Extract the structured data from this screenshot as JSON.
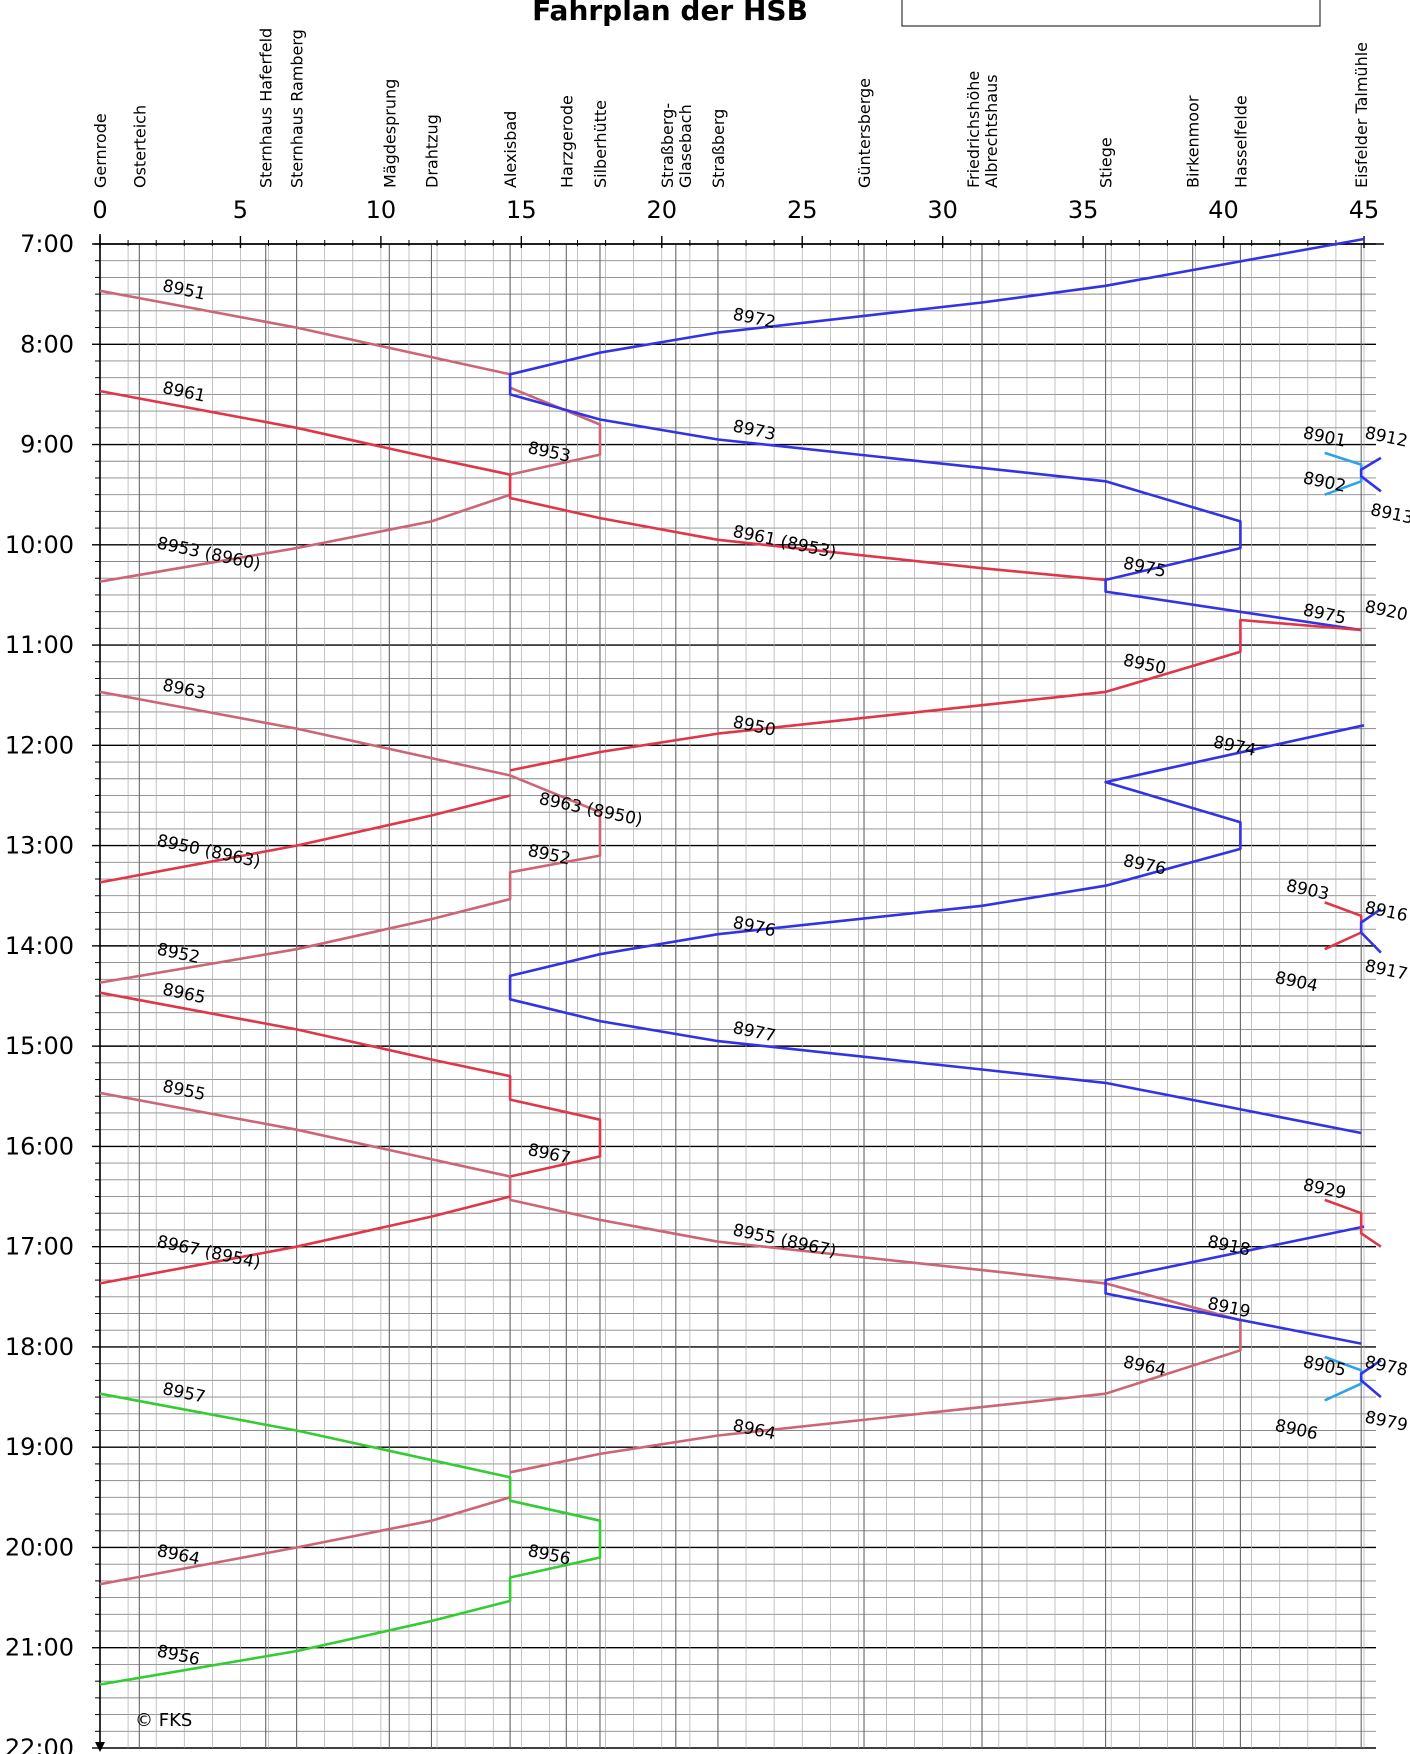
{
  "title": "Fahrplan der HSB",
  "copyright": "© FKS",
  "colors": {
    "blue": "#3333e6",
    "red": "#e0364a",
    "mauve": "#cc6677",
    "green": "#33cc33",
    "lightblue": "#2aa3e8"
  },
  "chart_data": {
    "type": "line",
    "xlabel": "",
    "ylabel": "",
    "xlim": [
      0,
      45
    ],
    "ylim": [
      "7:00",
      "22:00"
    ],
    "x_ticks": [
      0,
      5,
      10,
      15,
      20,
      25,
      30,
      35,
      40,
      45
    ],
    "x_tick_labels": [
      "0",
      "5",
      "10",
      "15",
      "20",
      "25",
      "30",
      "35",
      "40",
      "45"
    ],
    "y_ticks": [
      "7:00",
      "8:00",
      "9:00",
      "10:00",
      "11:00",
      "12:00",
      "13:00",
      "14:00",
      "15:00",
      "16:00",
      "17:00",
      "18:00",
      "19:00",
      "20:00",
      "21:00",
      "22:00"
    ],
    "grid": true,
    "stations": [
      {
        "name": "Gernrode",
        "km": 0.0
      },
      {
        "name": "Osterteich",
        "km": 1.4
      },
      {
        "name": "Sternhaus Haferfeld",
        "km": 5.9
      },
      {
        "name": "Sternhaus Ramberg",
        "km": 7.0
      },
      {
        "name": "Mägdesprung",
        "km": 10.3
      },
      {
        "name": "Drahtzug",
        "km": 11.8
      },
      {
        "name": "Alexisbad",
        "km": 14.6
      },
      {
        "name": "Harzgerode",
        "km": 16.6
      },
      {
        "name": "Silberhütte",
        "km": 17.8
      },
      {
        "name": "Straßberg-Glasebach",
        "km": 20.5
      },
      {
        "name": "Straßberg",
        "km": 22.0
      },
      {
        "name": "Güntersberge",
        "km": 27.2
      },
      {
        "name": "Friedrichshöhe Albrechtshaus",
        "km": 31.4
      },
      {
        "name": "Stiege",
        "km": 35.8
      },
      {
        "name": "Birkenmoor",
        "km": 38.9
      },
      {
        "name": "Hasselfelde",
        "km": 40.6
      },
      {
        "name": "Eisfelder Talmühle",
        "km": 44.9
      }
    ],
    "series": [
      {
        "name": "8951",
        "color": "mauve",
        "points": [
          [
            0.0,
            "7:28"
          ],
          [
            7.0,
            "7:50"
          ],
          [
            14.6,
            "8:18"
          ]
        ]
      },
      {
        "name": "8953",
        "color": "mauve",
        "points": [
          [
            14.6,
            "8:26"
          ],
          [
            17.8,
            "8:48"
          ],
          [
            17.8,
            "9:06"
          ],
          [
            14.6,
            "9:18"
          ]
        ]
      },
      {
        "name": "8953 (8960)",
        "color": "mauve",
        "points": [
          [
            14.6,
            "9:30"
          ],
          [
            11.8,
            "9:46"
          ],
          [
            7.0,
            "10:02"
          ],
          [
            0.0,
            "10:22"
          ]
        ]
      },
      {
        "name": "8961",
        "color": "red",
        "points": [
          [
            0.0,
            "8:28"
          ],
          [
            7.0,
            "8:50"
          ],
          [
            11.8,
            "9:08"
          ],
          [
            14.6,
            "9:18"
          ],
          [
            14.6,
            "9:32"
          ],
          [
            17.8,
            "9:44"
          ],
          [
            22.0,
            "9:57"
          ],
          [
            31.4,
            "10:14"
          ],
          [
            35.8,
            "10:21"
          ]
        ]
      },
      {
        "name": "8972",
        "color": "blue",
        "points": [
          [
            45.0,
            "6:57"
          ],
          [
            35.8,
            "7:25"
          ],
          [
            31.4,
            "7:35"
          ],
          [
            22.0,
            "7:53"
          ],
          [
            17.8,
            "8:05"
          ],
          [
            14.6,
            "8:18"
          ],
          [
            14.6,
            "8:30"
          ],
          [
            17.8,
            "8:45"
          ],
          [
            22.0,
            "8:57"
          ],
          [
            31.4,
            "9:14"
          ],
          [
            35.8,
            "9:22"
          ],
          [
            40.6,
            "9:46"
          ],
          [
            40.6,
            "10:02"
          ],
          [
            35.8,
            "10:21"
          ],
          [
            35.8,
            "10:28"
          ],
          [
            44.9,
            "10:51"
          ]
        ]
      },
      {
        "name": "8920",
        "color": "red",
        "points": [
          [
            44.9,
            "10:51"
          ],
          [
            40.6,
            "10:45"
          ],
          [
            40.6,
            "11:04"
          ],
          [
            35.8,
            "11:28"
          ],
          [
            31.4,
            "11:36"
          ],
          [
            22.0,
            "11:53"
          ],
          [
            17.8,
            "12:04"
          ],
          [
            14.6,
            "12:15"
          ]
        ]
      },
      {
        "name": "8963",
        "color": "mauve",
        "points": [
          [
            0.0,
            "11:28"
          ],
          [
            7.0,
            "11:50"
          ],
          [
            14.6,
            "12:18"
          ],
          [
            17.8,
            "12:40"
          ],
          [
            17.8,
            "13:06"
          ],
          [
            14.6,
            "13:16"
          ],
          [
            14.6,
            "13:32"
          ],
          [
            11.8,
            "13:44"
          ],
          [
            7.0,
            "14:02"
          ],
          [
            0.0,
            "14:22"
          ]
        ]
      },
      {
        "name": "8950 (8963)",
        "color": "red",
        "points": [
          [
            14.6,
            "12:30"
          ],
          [
            11.8,
            "12:42"
          ],
          [
            7.0,
            "13:00"
          ],
          [
            0.0,
            "13:22"
          ]
        ]
      },
      {
        "name": "8974",
        "color": "blue",
        "points": [
          [
            45.0,
            "11:48"
          ],
          [
            35.8,
            "12:22"
          ],
          [
            40.6,
            "12:46"
          ],
          [
            40.6,
            "13:02"
          ],
          [
            35.8,
            "13:24"
          ],
          [
            31.4,
            "13:36"
          ],
          [
            22.0,
            "13:53"
          ],
          [
            17.8,
            "14:05"
          ],
          [
            14.6,
            "14:18"
          ],
          [
            14.6,
            "14:32"
          ],
          [
            17.8,
            "14:45"
          ],
          [
            22.0,
            "14:57"
          ],
          [
            31.4,
            "15:14"
          ],
          [
            35.8,
            "15:22"
          ],
          [
            44.9,
            "15:52"
          ]
        ]
      },
      {
        "name": "8965",
        "color": "red",
        "points": [
          [
            0.0,
            "14:28"
          ],
          [
            7.0,
            "14:50"
          ],
          [
            11.8,
            "15:08"
          ],
          [
            14.6,
            "15:18"
          ],
          [
            14.6,
            "15:32"
          ],
          [
            17.8,
            "15:44"
          ],
          [
            17.8,
            "16:06"
          ],
          [
            14.6,
            "16:18"
          ]
        ]
      },
      {
        "name": "8955",
        "color": "mauve",
        "points": [
          [
            0.0,
            "15:28"
          ],
          [
            7.0,
            "15:50"
          ],
          [
            14.6,
            "16:18"
          ],
          [
            14.6,
            "16:32"
          ],
          [
            17.8,
            "16:44"
          ],
          [
            22.0,
            "16:57"
          ],
          [
            31.4,
            "17:14"
          ],
          [
            35.8,
            "17:22"
          ],
          [
            40.6,
            "17:44"
          ],
          [
            40.6,
            "18:02"
          ],
          [
            35.8,
            "18:28"
          ],
          [
            31.4,
            "18:36"
          ],
          [
            22.0,
            "18:53"
          ],
          [
            17.8,
            "19:04"
          ],
          [
            14.6,
            "19:15"
          ]
        ]
      },
      {
        "name": "8967 (8954)",
        "color": "red",
        "points": [
          [
            14.6,
            "16:30"
          ],
          [
            11.8,
            "16:42"
          ],
          [
            7.0,
            "17:00"
          ],
          [
            0.0,
            "17:22"
          ]
        ]
      },
      {
        "name": "8918",
        "color": "blue",
        "points": [
          [
            45.0,
            "16:48"
          ],
          [
            35.8,
            "17:20"
          ],
          [
            35.8,
            "17:28"
          ],
          [
            44.9,
            "17:58"
          ]
        ]
      },
      {
        "name": "8957",
        "color": "green",
        "points": [
          [
            0.0,
            "18:28"
          ],
          [
            7.0,
            "18:50"
          ],
          [
            14.6,
            "19:18"
          ],
          [
            14.6,
            "19:32"
          ],
          [
            17.8,
            "19:44"
          ],
          [
            17.8,
            "20:06"
          ],
          [
            14.6,
            "20:18"
          ],
          [
            14.6,
            "20:32"
          ],
          [
            11.8,
            "20:44"
          ],
          [
            7.0,
            "21:02"
          ],
          [
            0.0,
            "21:22"
          ]
        ]
      },
      {
        "name": "8964",
        "color": "mauve",
        "points": [
          [
            14.6,
            "19:30"
          ],
          [
            11.8,
            "19:44"
          ],
          [
            7.0,
            "20:00"
          ],
          [
            0.0,
            "20:22"
          ]
        ]
      },
      {
        "name": "8901",
        "color": "lightblue",
        "points": [
          [
            43.6,
            "9:05"
          ],
          [
            44.9,
            "9:12"
          ],
          [
            44.9,
            "9:22"
          ],
          [
            43.6,
            "9:30"
          ]
        ]
      },
      {
        "name": "8912",
        "color": "blue",
        "points": [
          [
            45.6,
            "9:08"
          ],
          [
            44.9,
            "9:15"
          ],
          [
            44.9,
            "9:19"
          ],
          [
            45.6,
            "9:28"
          ]
        ]
      },
      {
        "name": "8903",
        "color": "red",
        "points": [
          [
            43.6,
            "13:34"
          ],
          [
            44.9,
            "13:42"
          ],
          [
            44.9,
            "13:52"
          ],
          [
            43.6,
            "14:02"
          ]
        ]
      },
      {
        "name": "8916",
        "color": "blue",
        "points": [
          [
            45.6,
            "13:38"
          ],
          [
            44.9,
            "13:46"
          ],
          [
            44.9,
            "13:52"
          ],
          [
            45.6,
            "14:04"
          ]
        ]
      },
      {
        "name": "8929",
        "color": "red",
        "points": [
          [
            43.6,
            "16:32"
          ],
          [
            44.9,
            "16:40"
          ],
          [
            44.9,
            "16:52"
          ],
          [
            45.6,
            "17:00"
          ]
        ]
      },
      {
        "name": "8905",
        "color": "lightblue",
        "points": [
          [
            43.6,
            "18:06"
          ],
          [
            44.9,
            "18:14"
          ],
          [
            44.9,
            "18:22"
          ],
          [
            43.6,
            "18:32"
          ]
        ]
      },
      {
        "name": "8978",
        "color": "blue",
        "points": [
          [
            45.6,
            "18:08"
          ],
          [
            44.9,
            "18:16"
          ],
          [
            44.9,
            "18:20"
          ],
          [
            45.6,
            "18:30"
          ]
        ]
      }
    ],
    "labels": [
      {
        "text": "8951",
        "km": 2.2,
        "time": "7:28"
      },
      {
        "text": "8972",
        "km": 22.5,
        "time": "7:45"
      },
      {
        "text": "8961",
        "km": 2.2,
        "time": "8:29"
      },
      {
        "text": "8953",
        "km": 15.2,
        "time": "9:05"
      },
      {
        "text": "8973",
        "km": 22.5,
        "time": "8:52"
      },
      {
        "text": "8961 (8953)",
        "km": 22.5,
        "time": "9:55"
      },
      {
        "text": "8953 (8960)",
        "km": 2.0,
        "time": "10:02"
      },
      {
        "text": "8975",
        "km": 36.4,
        "time": "10:14"
      },
      {
        "text": "8901",
        "km": 42.8,
        "time": "8:56"
      },
      {
        "text": "8912",
        "km": 45.0,
        "time": "8:56"
      },
      {
        "text": "8902",
        "km": 42.8,
        "time": "9:23"
      },
      {
        "text": "8913",
        "km": 45.2,
        "time": "9:42"
      },
      {
        "text": "8975",
        "km": 42.8,
        "time": "10:42"
      },
      {
        "text": "8920",
        "km": 45.0,
        "time": "10:40"
      },
      {
        "text": "8950",
        "km": 36.4,
        "time": "11:12"
      },
      {
        "text": "8963",
        "km": 2.2,
        "time": "11:27"
      },
      {
        "text": "8950",
        "km": 22.5,
        "time": "11:49"
      },
      {
        "text": "8974",
        "km": 39.6,
        "time": "12:01"
      },
      {
        "text": "8963 (8950)",
        "km": 15.6,
        "time": "12:35"
      },
      {
        "text": "8950 (8963)",
        "km": 2.0,
        "time": "13:00"
      },
      {
        "text": "8952",
        "km": 15.2,
        "time": "13:06"
      },
      {
        "text": "8976",
        "km": 36.4,
        "time": "13:12"
      },
      {
        "text": "8976",
        "km": 22.5,
        "time": "13:49"
      },
      {
        "text": "8903",
        "km": 42.2,
        "time": "13:27"
      },
      {
        "text": "8916",
        "km": 45.0,
        "time": "13:40"
      },
      {
        "text": "8952",
        "km": 2.0,
        "time": "14:05"
      },
      {
        "text": "8904",
        "km": 41.8,
        "time": "14:22"
      },
      {
        "text": "8917",
        "km": 45.0,
        "time": "14:15"
      },
      {
        "text": "8965",
        "km": 2.2,
        "time": "14:29"
      },
      {
        "text": "8977",
        "km": 22.5,
        "time": "14:52"
      },
      {
        "text": "8955",
        "km": 2.2,
        "time": "15:27"
      },
      {
        "text": "8967",
        "km": 15.2,
        "time": "16:05"
      },
      {
        "text": "8929",
        "km": 42.8,
        "time": "16:26"
      },
      {
        "text": "8967 (8954)",
        "km": 2.0,
        "time": "17:00"
      },
      {
        "text": "8955 (8967)",
        "km": 22.5,
        "time": "16:53"
      },
      {
        "text": "8918",
        "km": 39.4,
        "time": "17:00"
      },
      {
        "text": "8919",
        "km": 39.4,
        "time": "17:37"
      },
      {
        "text": "8964",
        "km": 36.4,
        "time": "18:12"
      },
      {
        "text": "8905",
        "km": 42.8,
        "time": "18:12"
      },
      {
        "text": "8978",
        "km": 45.0,
        "time": "18:12"
      },
      {
        "text": "8957",
        "km": 2.2,
        "time": "18:28"
      },
      {
        "text": "8964",
        "km": 22.5,
        "time": "18:50"
      },
      {
        "text": "8906",
        "km": 41.8,
        "time": "18:50"
      },
      {
        "text": "8979",
        "km": 45.0,
        "time": "18:45"
      },
      {
        "text": "8956",
        "km": 15.2,
        "time": "20:05"
      },
      {
        "text": "8964",
        "km": 2.0,
        "time": "20:05"
      },
      {
        "text": "8956",
        "km": 2.0,
        "time": "21:05"
      }
    ]
  }
}
